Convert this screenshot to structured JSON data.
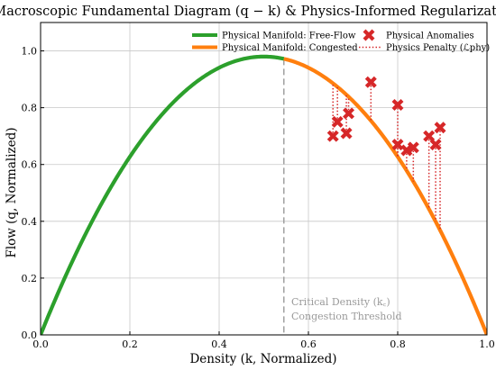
{
  "chart_data": {
    "type": "line",
    "title": "Macroscopic Fundamental Diagram (q − k) & Physics-Informed Regularization",
    "xlabel": "Density (k, Normalized)",
    "ylabel": "Flow (q, Normalized)",
    "xlim": [
      0.0,
      1.0
    ],
    "ylim": [
      0.0,
      1.1
    ],
    "xticks": [
      "0.0",
      "0.2",
      "0.4",
      "0.6",
      "0.8",
      "1.0"
    ],
    "yticks": [
      "0.0",
      "0.2",
      "0.4",
      "0.6",
      "0.8",
      "1.0"
    ],
    "grid": true,
    "legend_position": "top-right",
    "critical_density": 0.545,
    "max_flow": 0.98,
    "series": [
      {
        "name": "Physical Manifold: Free-Flow",
        "type": "line",
        "color": "#2ca02c",
        "x_range": [
          0.0,
          0.545
        ]
      },
      {
        "name": "Physical Manifold: Congested",
        "type": "line",
        "color": "#ff7f0e",
        "x_range": [
          0.545,
          1.0
        ]
      },
      {
        "name": "Physical Anomalies",
        "type": "scatter",
        "color": "#d62728",
        "marker": "x",
        "points": [
          {
            "x": 0.655,
            "y": 0.7
          },
          {
            "x": 0.665,
            "y": 0.75
          },
          {
            "x": 0.685,
            "y": 0.71
          },
          {
            "x": 0.69,
            "y": 0.78
          },
          {
            "x": 0.74,
            "y": 0.89
          },
          {
            "x": 0.8,
            "y": 0.81
          },
          {
            "x": 0.8,
            "y": 0.67
          },
          {
            "x": 0.82,
            "y": 0.65
          },
          {
            "x": 0.835,
            "y": 0.66
          },
          {
            "x": 0.87,
            "y": 0.7
          },
          {
            "x": 0.885,
            "y": 0.67
          },
          {
            "x": 0.895,
            "y": 0.73
          }
        ]
      },
      {
        "name": "Physics Penalty (ℒphy)",
        "type": "penalty",
        "color": "#d62728",
        "style": "dotted"
      }
    ],
    "annotation": {
      "line1": "Critical Density (k꜀)",
      "line2": "Congestion Threshold"
    }
  }
}
